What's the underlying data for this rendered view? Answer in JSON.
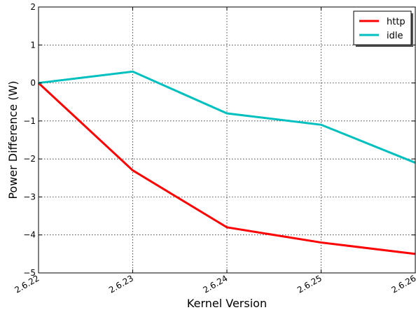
{
  "chart_data": {
    "type": "line",
    "xlabel": "Kernel Version",
    "ylabel": "Power Difference (W)",
    "categories": [
      "2.6.22",
      "2.6.23",
      "2.6.24",
      "2.6.25",
      "2.6.26"
    ],
    "ylim": [
      -5,
      2
    ],
    "yticks": [
      -5,
      -4,
      -3,
      -2,
      -1,
      0,
      1,
      2
    ],
    "grid": true,
    "legend_position": "top-right",
    "series": [
      {
        "name": "http",
        "color": "#ff0000",
        "values": [
          0,
          -2.3,
          -3.8,
          -4.2,
          -4.5
        ]
      },
      {
        "name": "idle",
        "color": "#00bfbf",
        "values": [
          0,
          0.3,
          -0.8,
          -1.1,
          -2.1
        ]
      }
    ]
  }
}
